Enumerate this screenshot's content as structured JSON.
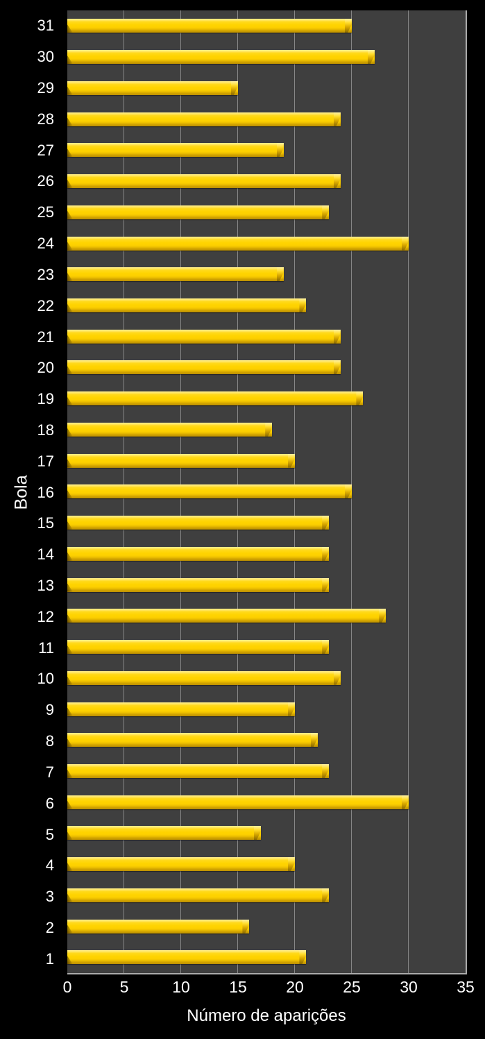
{
  "chart_data": {
    "type": "bar",
    "orientation": "horizontal",
    "xlabel": "Número de aparições",
    "ylabel": "Bola",
    "categories": [
      1,
      2,
      3,
      4,
      5,
      6,
      7,
      8,
      9,
      10,
      11,
      12,
      13,
      14,
      15,
      16,
      17,
      18,
      19,
      20,
      21,
      22,
      23,
      24,
      25,
      26,
      27,
      28,
      29,
      30,
      31
    ],
    "values": [
      21,
      16,
      23,
      20,
      17,
      30,
      23,
      22,
      20,
      24,
      23,
      28,
      23,
      23,
      23,
      25,
      20,
      18,
      26,
      24,
      24,
      21,
      19,
      30,
      23,
      24,
      19,
      24,
      15,
      27,
      25
    ],
    "category_order_on_screen": "31 at top, 1 at bottom",
    "xlim": [
      0,
      35
    ],
    "xticks": [
      0,
      5,
      10,
      15,
      20,
      25,
      30,
      35
    ],
    "grid": true,
    "legend": "none",
    "colors": {
      "figure_background": "#000000",
      "plot_background": "#3F3F3F",
      "gridline": "#878787",
      "axis_line": "#ABABAB",
      "bar_fill": "#FFD400",
      "bar_highlight": "#FFED8D",
      "bar_shadow": "#BD9000",
      "text": "#FFFFFF"
    }
  }
}
